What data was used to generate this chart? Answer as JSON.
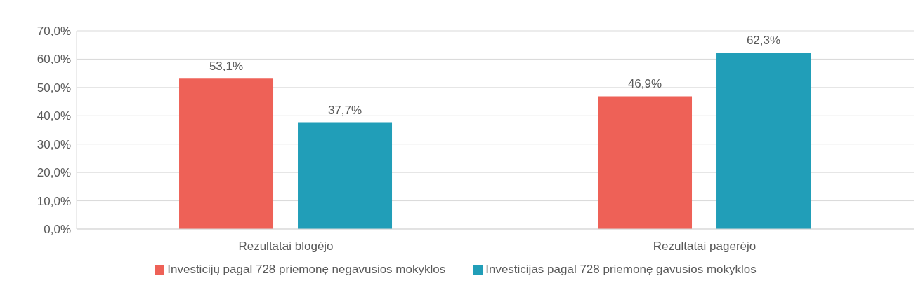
{
  "chart_data": {
    "type": "bar",
    "categories": [
      "Rezultatai blogėjo",
      "Rezultatai pagerėjo"
    ],
    "series": [
      {
        "name": "Investicijų pagal 728 priemonę negavusios mokyklos",
        "color": "#ee6157",
        "values": [
          53.1,
          46.9
        ],
        "value_labels": [
          "53,1%",
          "46,9%"
        ]
      },
      {
        "name": "Investicijas pagal 728 priemonę gavusios mokyklos",
        "color": "#219eb8",
        "values": [
          37.7,
          62.3
        ],
        "value_labels": [
          "37,7%",
          "62,3%"
        ]
      }
    ],
    "ylim": [
      0,
      70
    ],
    "yticks": [
      {
        "value": 0,
        "label": "0,0%"
      },
      {
        "value": 10,
        "label": "10,0%"
      },
      {
        "value": 20,
        "label": "20,0%"
      },
      {
        "value": 30,
        "label": "30,0%"
      },
      {
        "value": 40,
        "label": "40,0%"
      },
      {
        "value": 50,
        "label": "50,0%"
      },
      {
        "value": 60,
        "label": "60,0%"
      },
      {
        "value": 70,
        "label": "70,0%"
      }
    ],
    "grid": "y",
    "legend": "bottom"
  }
}
